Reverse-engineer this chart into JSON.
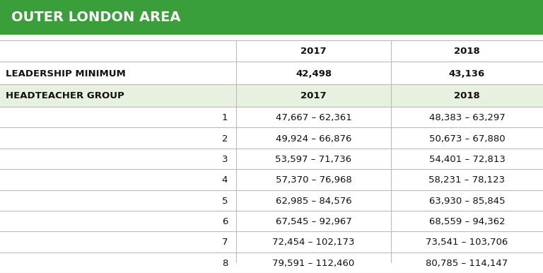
{
  "title": "OUTER LONDON AREA",
  "title_bg": "#3a9e3a",
  "title_color": "#ffffff",
  "header_row": [
    "",
    "2017",
    "2018"
  ],
  "leadership_row": [
    "LEADERSHIP MINIMUM",
    "42,498",
    "43,136"
  ],
  "group_header_row": [
    "HEADTEACHER GROUP",
    "2017",
    "2018"
  ],
  "group_header_bg": "#e8f0e0",
  "rows": [
    [
      "1",
      "47,667 – 62,361",
      "48,383 – 63,297"
    ],
    [
      "2",
      "49,924 – 66,876",
      "50,673 – 67,880"
    ],
    [
      "3",
      "53,597 – 71,736",
      "54,401 – 72,813"
    ],
    [
      "4",
      "57,370 – 76,968",
      "58,231 – 78,123"
    ],
    [
      "5",
      "62,985 – 84,576",
      "63,930 – 85,845"
    ],
    [
      "6",
      "67,545 – 92,967",
      "68,559 – 94,362"
    ],
    [
      "7",
      "72,454 – 102,173",
      "73,541 – 103,706"
    ],
    [
      "8",
      "79,591 – 112,460",
      "80,785 – 114,147"
    ]
  ],
  "title_font_size": 14,
  "header_font_size": 9.5,
  "data_font_size": 9.5,
  "line_color": "#bbbbbb",
  "bg_color": "#ffffff",
  "group_header_bg_alt": "#dce8d0"
}
